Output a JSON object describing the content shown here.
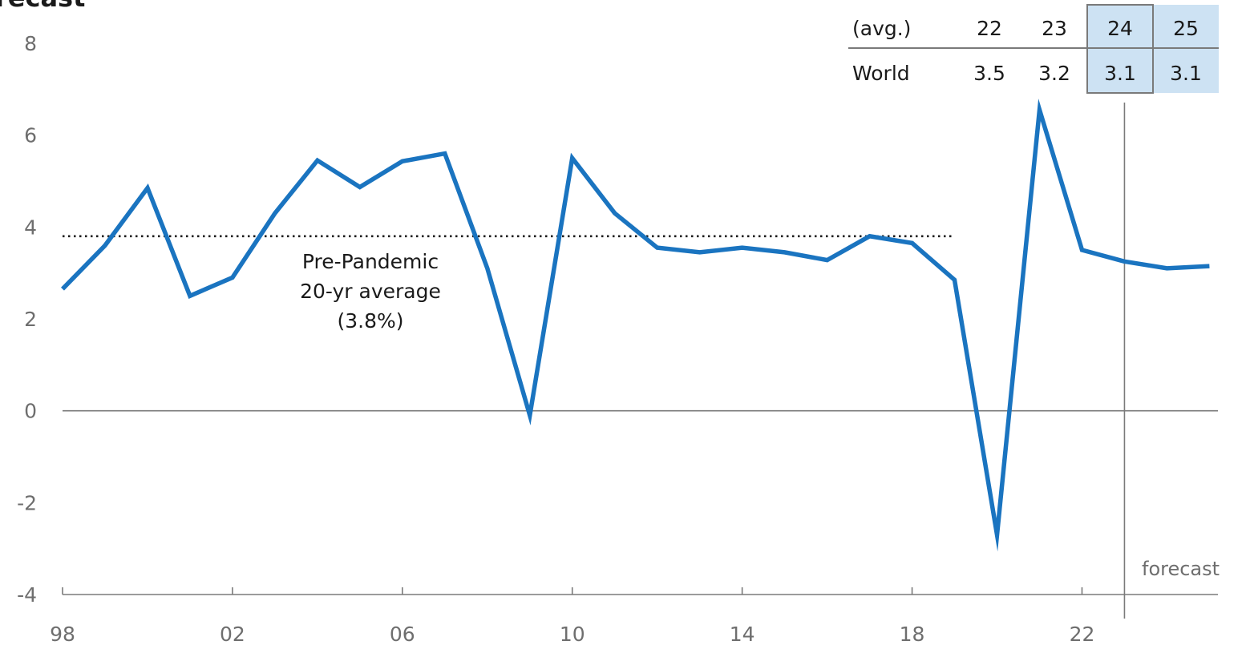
{
  "header": {
    "partial_title": "recast"
  },
  "chart_data": {
    "type": "line",
    "x": [
      1998,
      1999,
      2000,
      2001,
      2002,
      2003,
      2004,
      2005,
      2006,
      2007,
      2008,
      2009,
      2010,
      2011,
      2012,
      2013,
      2014,
      2015,
      2016,
      2017,
      2018,
      2019,
      2020,
      2021,
      2022,
      2023,
      2024,
      2025
    ],
    "series": [
      {
        "values": [
          2.65,
          3.6,
          4.85,
          2.5,
          2.9,
          4.3,
          5.45,
          4.87,
          5.43,
          5.6,
          3.1,
          -0.1,
          5.5,
          4.3,
          3.55,
          3.45,
          3.55,
          3.45,
          3.28,
          3.8,
          3.65,
          2.85,
          -2.7,
          6.55,
          3.5,
          3.25,
          3.1,
          3.15
        ],
        "color": "#1a74c0"
      }
    ],
    "reference_line": {
      "value": 3.8,
      "x_start": 1998,
      "x_end": 2019,
      "annotation": [
        "Pre-Pandemic",
        "20-yr average",
        "(3.8%)"
      ]
    },
    "forecast_start": 2023,
    "forecast_label": "forecast",
    "ylim": [
      -4,
      8
    ],
    "yticks": [
      8,
      6,
      4,
      2,
      0,
      -2,
      -4
    ],
    "xticks": [
      {
        "year": 1998,
        "label": "98"
      },
      {
        "year": 2002,
        "label": "02"
      },
      {
        "year": 2006,
        "label": "06"
      },
      {
        "year": 2010,
        "label": "10"
      },
      {
        "year": 2014,
        "label": "14"
      },
      {
        "year": 2018,
        "label": "18"
      },
      {
        "year": 2022,
        "label": "22"
      }
    ],
    "xlim": [
      1998,
      2025.2
    ],
    "grid": false,
    "inset_table": {
      "header": [
        "(avg.)",
        "22",
        "23",
        "24",
        "25"
      ],
      "rows": [
        [
          "World",
          "3.5",
          "3.2",
          "3.1",
          "3.1"
        ]
      ],
      "highlight_color": "#cde2f3"
    }
  }
}
